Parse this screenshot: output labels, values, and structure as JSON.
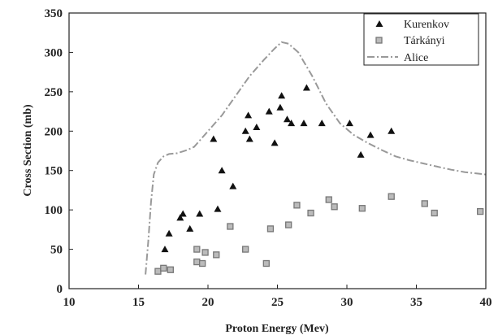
{
  "chart_data": {
    "type": "scatter",
    "title": "",
    "xlabel": "Proton Energy (Mev)",
    "ylabel": "Cross Section (mb)",
    "xlim": [
      10,
      40
    ],
    "ylim": [
      0,
      350
    ],
    "xticks": [
      10,
      15,
      20,
      25,
      30,
      35,
      40
    ],
    "yticks": [
      0,
      50,
      100,
      150,
      200,
      250,
      300,
      350
    ],
    "grid": false,
    "legend_position": "top-right",
    "series": [
      {
        "name": "Kurenkov",
        "marker": "triangle",
        "color": "#111111",
        "points": [
          [
            16.9,
            50
          ],
          [
            17.2,
            70
          ],
          [
            18.0,
            90
          ],
          [
            18.2,
            95
          ],
          [
            18.7,
            76
          ],
          [
            19.4,
            95
          ],
          [
            20.4,
            190
          ],
          [
            20.7,
            101
          ],
          [
            21.0,
            150
          ],
          [
            21.8,
            130
          ],
          [
            22.7,
            200
          ],
          [
            22.9,
            220
          ],
          [
            23.0,
            190
          ],
          [
            23.5,
            205
          ],
          [
            24.4,
            225
          ],
          [
            24.8,
            185
          ],
          [
            25.2,
            230
          ],
          [
            25.3,
            245
          ],
          [
            25.7,
            215
          ],
          [
            26.0,
            210
          ],
          [
            26.9,
            210
          ],
          [
            27.1,
            255
          ],
          [
            28.2,
            210
          ],
          [
            30.2,
            210
          ],
          [
            31.0,
            170
          ],
          [
            31.7,
            195
          ],
          [
            33.2,
            200
          ]
        ]
      },
      {
        "name": "Tárkányi",
        "marker": "square",
        "color": "#888888",
        "points": [
          [
            16.4,
            22
          ],
          [
            16.8,
            26
          ],
          [
            17.3,
            24
          ],
          [
            19.2,
            34
          ],
          [
            19.2,
            50
          ],
          [
            19.6,
            32
          ],
          [
            19.8,
            46
          ],
          [
            20.6,
            43
          ],
          [
            21.6,
            79
          ],
          [
            22.7,
            50
          ],
          [
            24.2,
            32
          ],
          [
            24.5,
            76
          ],
          [
            25.8,
            81
          ],
          [
            26.4,
            106
          ],
          [
            27.4,
            96
          ],
          [
            28.7,
            113
          ],
          [
            29.1,
            104
          ],
          [
            31.1,
            102
          ],
          [
            33.2,
            117
          ],
          [
            35.6,
            108
          ],
          [
            36.3,
            96
          ],
          [
            39.6,
            98
          ]
        ]
      },
      {
        "name": "Alice",
        "marker": "line",
        "style": "dash-dot",
        "color": "#999999",
        "points": [
          [
            15.5,
            18
          ],
          [
            15.7,
            60
          ],
          [
            15.9,
            110
          ],
          [
            16.1,
            145
          ],
          [
            16.4,
            160
          ],
          [
            16.8,
            168
          ],
          [
            17.2,
            171
          ],
          [
            17.8,
            172
          ],
          [
            18.5,
            176
          ],
          [
            19.0,
            180
          ],
          [
            20.0,
            200
          ],
          [
            21.0,
            220
          ],
          [
            22.0,
            245
          ],
          [
            23.0,
            270
          ],
          [
            24.0,
            290
          ],
          [
            24.8,
            305
          ],
          [
            25.3,
            313
          ],
          [
            25.8,
            311
          ],
          [
            26.5,
            300
          ],
          [
            27.5,
            270
          ],
          [
            28.5,
            235
          ],
          [
            29.5,
            210
          ],
          [
            30.5,
            195
          ],
          [
            31.5,
            185
          ],
          [
            32.5,
            176
          ],
          [
            33.5,
            168
          ],
          [
            34.5,
            163
          ],
          [
            35.5,
            159
          ],
          [
            36.5,
            155
          ],
          [
            37.5,
            151
          ],
          [
            38.5,
            148
          ],
          [
            40.0,
            145
          ]
        ]
      }
    ]
  }
}
